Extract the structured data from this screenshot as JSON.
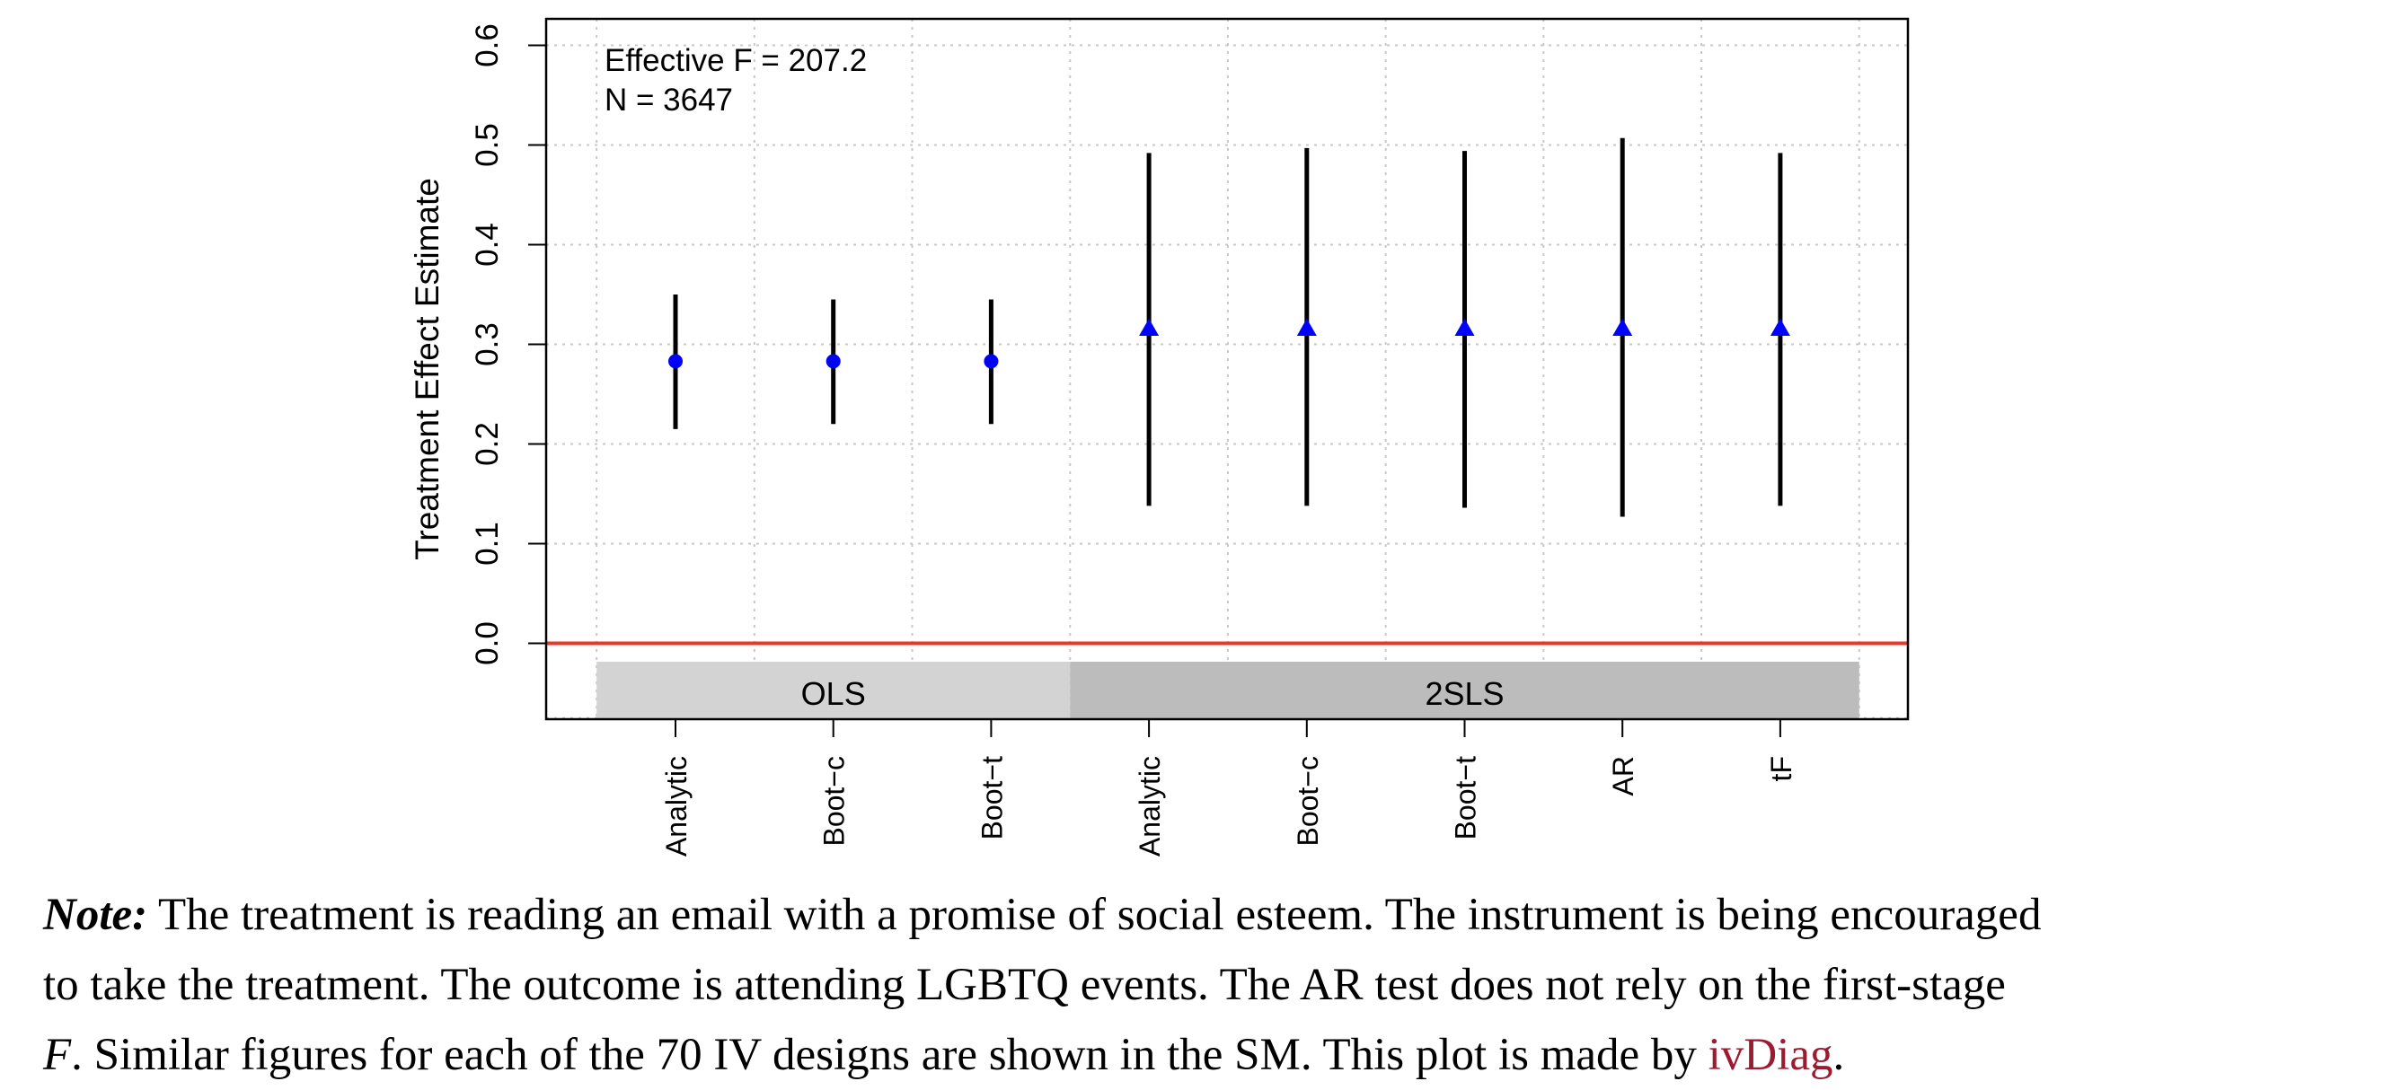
{
  "chart_data": {
    "type": "scatter",
    "title": "",
    "xlabel": "",
    "ylabel": "Treatment Effect Estimate",
    "ylim": [
      -0.075,
      0.625
    ],
    "yticks": [
      "0.0",
      "0.1",
      "0.2",
      "0.3",
      "0.4",
      "0.5",
      "0.6"
    ],
    "ytick_values": [
      0.0,
      0.1,
      0.2,
      0.3,
      0.4,
      0.5,
      0.6
    ],
    "grid": true,
    "reference_line": {
      "y": 0.0,
      "color": "#e8382c"
    },
    "annotations": [
      "Effective F = 207.2",
      "N = 3647"
    ],
    "groups": [
      {
        "label": "OLS",
        "start": 0,
        "end": 2,
        "color": "#d3d3d3"
      },
      {
        "label": "2SLS",
        "start": 3,
        "end": 7,
        "color": "#bcbcbc"
      }
    ],
    "categories": [
      "Analytic",
      "Boot−c",
      "Boot−t",
      "Analytic",
      "Boot−c",
      "Boot−t",
      "AR",
      "tF"
    ],
    "estimates": [
      0.283,
      0.283,
      0.283,
      0.316,
      0.316,
      0.316,
      0.316,
      0.316
    ],
    "ci_lower": [
      0.215,
      0.22,
      0.22,
      0.138,
      0.138,
      0.136,
      0.127,
      0.138
    ],
    "ci_upper": [
      0.35,
      0.345,
      0.345,
      0.492,
      0.497,
      0.494,
      0.507,
      0.492
    ],
    "markers": [
      "circle",
      "circle",
      "circle",
      "triangle",
      "triangle",
      "triangle",
      "triangle",
      "triangle"
    ],
    "point_color": "#0000ff",
    "interval_color": "#000000"
  },
  "note": {
    "label": "Note:",
    "line1_text": "The treatment is reading an email with a promise of social esteem.  The instrument is being encouraged",
    "line2_text": "to take the treatment.  The outcome is attending LGBTQ events.  The AR test does not rely on the first-stage",
    "line3_symbol": "F",
    "line3_text": ".  Similar figures for each of the 70 IV designs are shown in the SM. This plot is made by ",
    "link_text": "ivDiag",
    "line3_end": "."
  }
}
